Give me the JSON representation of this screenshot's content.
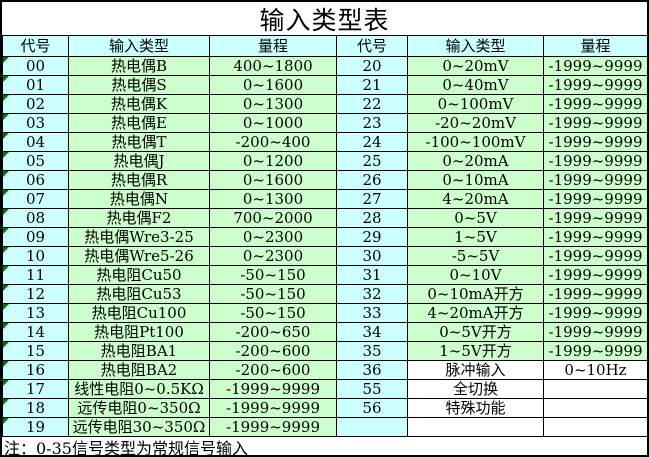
{
  "title": "输入类型表",
  "headers": {
    "code": "代号",
    "type": "输入类型",
    "range": "量程"
  },
  "note": "注：0-35信号类型为常规信号输入",
  "colors": {
    "code_column": "#CCFFFF",
    "data_cell": "#CCFFCC",
    "plain_cell": "#FFFFFF",
    "corner_triangle": "#007A00",
    "grid_line": "#000000"
  },
  "rows": [
    {
      "left": {
        "code": "00",
        "type": "热电偶B",
        "range": "400~1800"
      },
      "right": {
        "code": "20",
        "type": "0~20mV",
        "range": "-1999~9999",
        "plain": false
      }
    },
    {
      "left": {
        "code": "01",
        "type": "热电偶S",
        "range": "0~1600"
      },
      "right": {
        "code": "21",
        "type": "0~40mV",
        "range": "-1999~9999",
        "plain": false
      }
    },
    {
      "left": {
        "code": "02",
        "type": "热电偶K",
        "range": "0~1300"
      },
      "right": {
        "code": "22",
        "type": "0~100mV",
        "range": "-1999~9999",
        "plain": false
      }
    },
    {
      "left": {
        "code": "03",
        "type": "热电偶E",
        "range": "0~1000"
      },
      "right": {
        "code": "23",
        "type": "-20~20mV",
        "range": "-1999~9999",
        "plain": false
      }
    },
    {
      "left": {
        "code": "04",
        "type": "热电偶T",
        "range": "-200~400"
      },
      "right": {
        "code": "24",
        "type": "-100~100mV",
        "range": "-1999~9999",
        "plain": false
      }
    },
    {
      "left": {
        "code": "05",
        "type": "热电偶J",
        "range": "0~1200"
      },
      "right": {
        "code": "25",
        "type": "0~20mA",
        "range": "-1999~9999",
        "plain": false
      }
    },
    {
      "left": {
        "code": "06",
        "type": "热电偶R",
        "range": "0~1600"
      },
      "right": {
        "code": "26",
        "type": "0~10mA",
        "range": "-1999~9999",
        "plain": false
      }
    },
    {
      "left": {
        "code": "07",
        "type": "热电偶N",
        "range": "0~1300"
      },
      "right": {
        "code": "27",
        "type": "4~20mA",
        "range": "-1999~9999",
        "plain": false
      }
    },
    {
      "left": {
        "code": "08",
        "type": "热电偶F2",
        "range": "700~2000"
      },
      "right": {
        "code": "28",
        "type": "0~5V",
        "range": "-1999~9999",
        "plain": false
      }
    },
    {
      "left": {
        "code": "09",
        "type": "热电偶Wre3-25",
        "range": "0~2300"
      },
      "right": {
        "code": "29",
        "type": "1~5V",
        "range": "-1999~9999",
        "plain": false
      }
    },
    {
      "left": {
        "code": "10",
        "type": "热电偶Wre5-26",
        "range": "0~2300"
      },
      "right": {
        "code": "30",
        "type": "-5~5V",
        "range": "-1999~9999",
        "plain": false
      }
    },
    {
      "left": {
        "code": "11",
        "type": "热电阻Cu50",
        "range": "-50~150"
      },
      "right": {
        "code": "31",
        "type": "0~10V",
        "range": "-1999~9999",
        "plain": false
      }
    },
    {
      "left": {
        "code": "12",
        "type": "热电阻Cu53",
        "range": "-50~150"
      },
      "right": {
        "code": "32",
        "type": "0~10mA开方",
        "range": "-1999~9999",
        "plain": false
      }
    },
    {
      "left": {
        "code": "13",
        "type": "热电阻Cu100",
        "range": "-50~150"
      },
      "right": {
        "code": "33",
        "type": "4~20mA开方",
        "range": "-1999~9999",
        "plain": false
      }
    },
    {
      "left": {
        "code": "14",
        "type": "热电阻Pt100",
        "range": "-200~650"
      },
      "right": {
        "code": "34",
        "type": "0~5V开方",
        "range": "-1999~9999",
        "plain": false
      }
    },
    {
      "left": {
        "code": "15",
        "type": "热电阻BA1",
        "range": "-200~600"
      },
      "right": {
        "code": "35",
        "type": "1~5V开方",
        "range": "-1999~9999",
        "plain": false
      }
    },
    {
      "left": {
        "code": "16",
        "type": "热电阻BA2",
        "range": "-200~600"
      },
      "right": {
        "code": "36",
        "type": "脉冲输入",
        "range": "0~10Hz",
        "plain": true
      }
    },
    {
      "left": {
        "code": "17",
        "type": "线性电阻0~0.5KΩ",
        "range": "-1999~9999"
      },
      "right": {
        "code": "55",
        "type": "全切换",
        "range": "",
        "plain": true
      }
    },
    {
      "left": {
        "code": "18",
        "type": "远传电阻0~350Ω",
        "range": "-1999~9999"
      },
      "right": {
        "code": "56",
        "type": "特殊功能",
        "range": "",
        "plain": true
      }
    },
    {
      "left": {
        "code": "19",
        "type": "远传电阻30~350Ω",
        "range": "-1999~9999"
      },
      "right": {
        "code": "",
        "type": "",
        "range": "",
        "plain": true
      }
    }
  ]
}
